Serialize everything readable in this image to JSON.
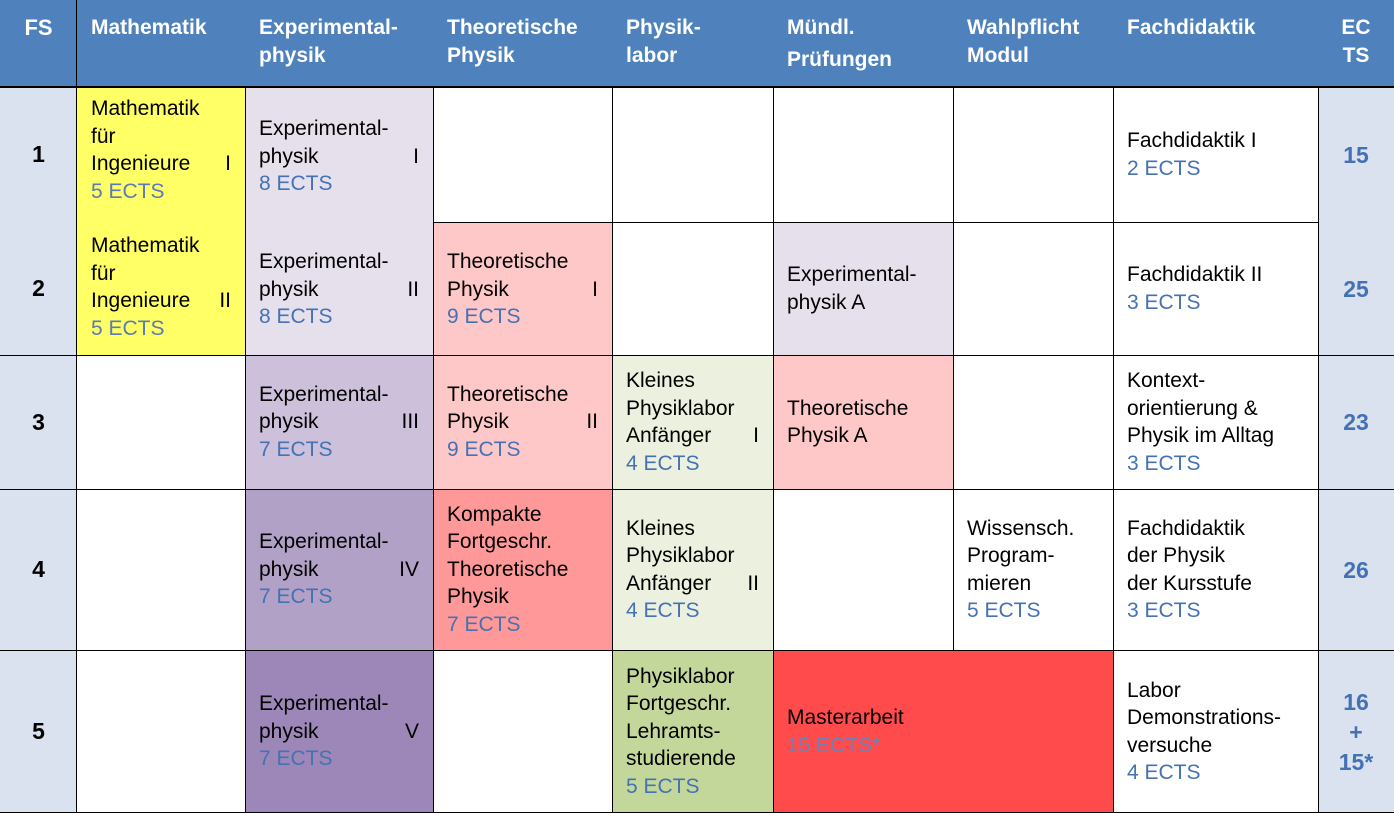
{
  "colors": {
    "header_bg": "#4f81bd",
    "fs_col": "#d9e2ee",
    "math": "#ffff66",
    "exp1": "#e6e0ed",
    "exp3": "#ccc0da",
    "exp4": "#b2a1c7",
    "exp5": "#9c87b8",
    "theo": "#ffc8c8",
    "theo_dark": "#ff9999",
    "lab_light": "#ebf1de",
    "lab_dark": "#c4d79b",
    "master": "#ff4b4b",
    "ects_text": "#4472b4"
  },
  "header": {
    "fs": "FS",
    "mathematik": "Mathematik",
    "exp": [
      "Experimental-",
      "physik"
    ],
    "theo": [
      "Theoretische",
      "Physik"
    ],
    "lab": [
      "Physik-",
      "labor"
    ],
    "muendl": [
      "Mündl.",
      "Prüfungen"
    ],
    "wahl": [
      "Wahlpflicht",
      "Modul"
    ],
    "fachdidaktik": "Fachdidaktik",
    "ects": [
      "EC",
      "TS"
    ]
  },
  "rows": {
    "fs": [
      "1",
      "2",
      "3",
      "4",
      "5"
    ],
    "ects": [
      "15",
      "25",
      "23",
      "26"
    ],
    "ects5": [
      "16",
      "+",
      "15*"
    ]
  },
  "cells": {
    "math1": {
      "l1": "Mathematik",
      "l2": "für",
      "l3a": "Ingenieure",
      "l3b": "I",
      "e": "5 ECTS"
    },
    "math2": {
      "l1": "Mathematik",
      "l2": "für",
      "l3a": "Ingenieure",
      "l3b": "II",
      "e": "5 ECTS"
    },
    "exp1": {
      "l1": "Experimental-",
      "l2a": "physik",
      "l2b": "I",
      "e": "8 ECTS"
    },
    "exp2": {
      "l1": "Experimental-",
      "l2a": "physik",
      "l2b": "II",
      "e": "8 ECTS"
    },
    "exp3": {
      "l1": "Experimental-",
      "l2a": "physik",
      "l2b": "III",
      "e": "7 ECTS"
    },
    "exp4": {
      "l1": "Experimental-",
      "l2a": "physik",
      "l2b": "IV",
      "e": "7 ECTS"
    },
    "exp5": {
      "l1": "Experimental-",
      "l2a": "physik",
      "l2b": "V",
      "e": "7 ECTS"
    },
    "theo2": {
      "l1": "Theoretische",
      "l2a": "Physik",
      "l2b": "I",
      "e": "9 ECTS"
    },
    "theo3": {
      "l1": "Theoretische",
      "l2a": "Physik",
      "l2b": "II",
      "e": "9 ECTS"
    },
    "theo4": {
      "l1": "Kompakte",
      "l2": "Fortgeschr.",
      "l3": "Theoretische",
      "l4": "Physik",
      "e": "7 ECTS"
    },
    "lab3": {
      "l1": "Kleines",
      "l2": "Physiklabor",
      "l3a": "Anfänger",
      "l3b": "I",
      "e": "4 ECTS"
    },
    "lab4": {
      "l1": "Kleines",
      "l2": "Physiklabor",
      "l3a": "Anfänger",
      "l3b": "II",
      "e": "4 ECTS"
    },
    "lab5": {
      "l1": "Physiklabor",
      "l2": "Fortgeschr.",
      "l3": "Lehramts-",
      "l4": "studierende",
      "e": "5 ECTS"
    },
    "pr2": {
      "l1": "Experimental-",
      "l2": "physik A"
    },
    "pr3": {
      "l1": "Theoretische",
      "l2": "Physik A"
    },
    "master": {
      "l1": "Masterarbeit",
      "e": "15 ECTS*"
    },
    "wahl4": {
      "l1": "Wissensch.",
      "l2": "Program-",
      "l3": "mieren",
      "e": "5 ECTS"
    },
    "fd1": {
      "l1": "Fachdidaktik I",
      "e": "2 ECTS"
    },
    "fd2": {
      "l1": "Fachdidaktik II",
      "e": "3 ECTS"
    },
    "fd3": {
      "l1": "Kontext-",
      "l2": "orientierung &",
      "l3": "Physik im Alltag",
      "e": "3 ECTS"
    },
    "fd4": {
      "l1": "Fachdidaktik",
      "l2": "der Physik",
      "l3": "der Kursstufe",
      "e": "3 ECTS"
    },
    "fd5": {
      "l1": "Labor",
      "l2": "Demonstrations-",
      "l3": "versuche",
      "e": "4 ECTS"
    }
  }
}
